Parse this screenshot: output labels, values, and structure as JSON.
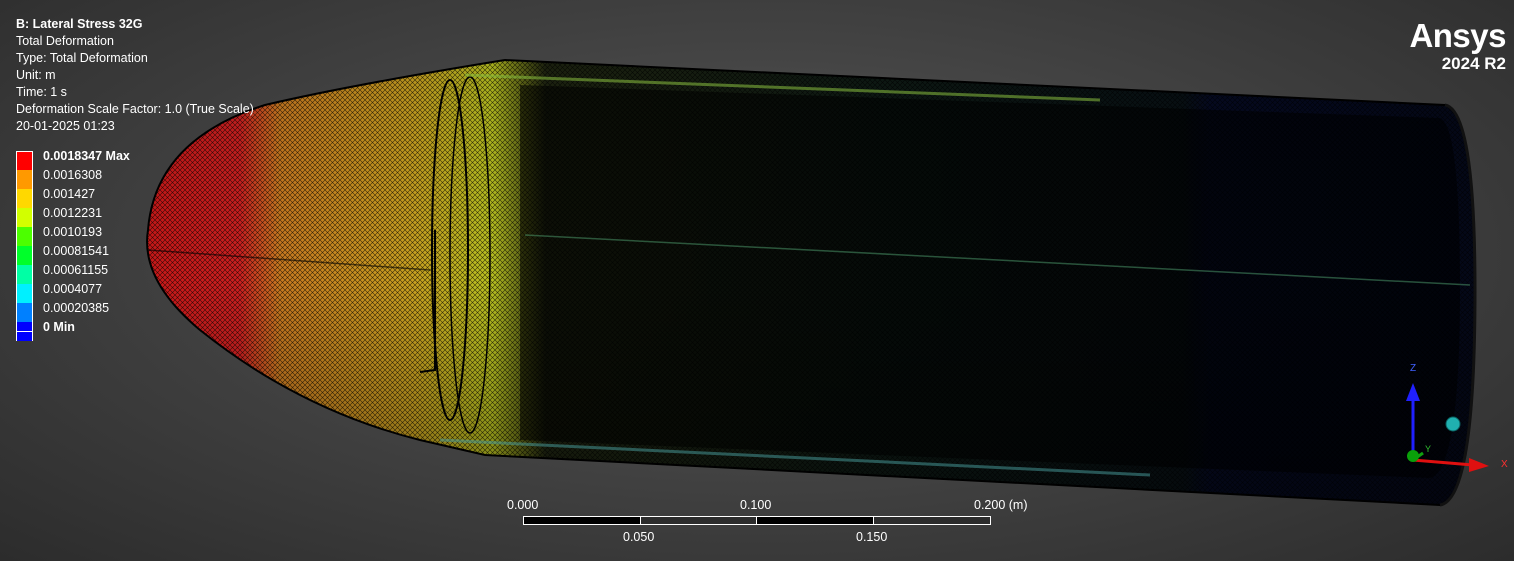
{
  "info": {
    "title": "B: Lateral Stress 32G",
    "result": "Total Deformation",
    "type": "Type: Total Deformation",
    "unit": "Unit: m",
    "time": "Time: 1 s",
    "scale_factor": "Deformation Scale Factor: 1.0 (True Scale)",
    "timestamp": "20-01-2025 01:23"
  },
  "legend": {
    "items": [
      {
        "label": "0.0018347 Max",
        "color": "#ff0000",
        "bold": true
      },
      {
        "label": "0.0016308",
        "color": "#ff9900",
        "bold": false
      },
      {
        "label": "0.001427",
        "color": "#ffd800",
        "bold": false
      },
      {
        "label": "0.0012231",
        "color": "#d2ff00",
        "bold": false
      },
      {
        "label": "0.0010193",
        "color": "#4cff00",
        "bold": false
      },
      {
        "label": "0.00081541",
        "color": "#00ff2a",
        "bold": false
      },
      {
        "label": "0.00061155",
        "color": "#00ffa5",
        "bold": false
      },
      {
        "label": "0.0004077",
        "color": "#00f0ff",
        "bold": false
      },
      {
        "label": "0.00020385",
        "color": "#0080ff",
        "bold": false
      },
      {
        "label": "0 Min",
        "color": "#0000ff",
        "bold": true
      }
    ]
  },
  "logo": {
    "name": "Ansys",
    "version": "2024 R2"
  },
  "scale_bar": {
    "top_labels": [
      "0.000",
      "0.100",
      "0.200 (m)"
    ],
    "bottom_labels": [
      "0.050",
      "0.150"
    ]
  },
  "triad": {
    "x": "X",
    "y": "Y",
    "z": "Z"
  }
}
